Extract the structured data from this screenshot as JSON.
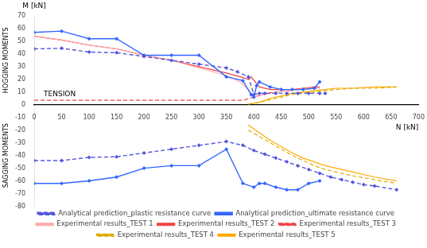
{
  "chart_data": {
    "type": "line",
    "xlabel": "N [kN]",
    "ylabel": "M [kN]",
    "annotations": [
      {
        "text": "TENSION"
      },
      {
        "text": "HOGGING MOMENTS"
      },
      {
        "text": "SAGGING MOMENTS"
      }
    ],
    "xlim": [
      0,
      700
    ],
    "ylim": [
      -80,
      70
    ],
    "xticks": [
      0,
      50,
      100,
      150,
      200,
      250,
      300,
      350,
      400,
      450,
      500,
      550,
      600,
      650,
      700
    ],
    "yticks": [
      -80,
      -70,
      -60,
      -50,
      -40,
      -30,
      -20,
      -10,
      0,
      10,
      20,
      30,
      40,
      50,
      60,
      70
    ],
    "grid": false,
    "legend": "bottom",
    "series": [
      {
        "name": "Analytical prediction_plastic resistance curve",
        "color": "#5555dd",
        "line_style": "dashed",
        "marker": "diamond",
        "x": [
          0,
          50,
          100,
          150,
          200,
          250,
          300,
          350,
          370,
          390,
          400,
          410,
          420,
          440,
          460,
          480,
          500,
          520,
          530,
          null,
          0,
          50,
          100,
          150,
          200,
          250,
          300,
          350,
          380,
          400,
          420,
          440,
          460,
          480,
          500,
          520,
          540,
          560,
          580,
          600,
          620,
          660
        ],
        "values": [
          44,
          44.5,
          41.5,
          41,
          38,
          35,
          32,
          29,
          26,
          22,
          8,
          9,
          9,
          9,
          9,
          9,
          9,
          9,
          9,
          null,
          -44,
          -44,
          -41.5,
          -41,
          -38,
          -35,
          -32,
          -29,
          -32,
          -36,
          -39,
          -42,
          -45,
          -48,
          -51,
          -54,
          -57,
          -59,
          -61,
          -63,
          -64,
          -67
        ]
      },
      {
        "name": "Analytical prediction_ultimate resistance curve",
        "color": "#3366ff",
        "line_style": "solid",
        "marker": "diamond",
        "x": [
          0,
          50,
          100,
          150,
          200,
          250,
          300,
          350,
          380,
          395,
          400,
          405,
          410,
          430,
          450,
          470,
          490,
          510,
          520,
          null,
          0,
          50,
          100,
          150,
          200,
          250,
          300,
          350,
          380,
          400,
          410,
          420,
          440,
          460,
          480,
          500,
          520
        ],
        "values": [
          57,
          58,
          52,
          52,
          39,
          39,
          39,
          22,
          19,
          8,
          6,
          15,
          18,
          14,
          12,
          12,
          12,
          13,
          18,
          null,
          -62,
          -62,
          -60,
          -57,
          -50,
          -48,
          -48,
          -35,
          -62,
          -65,
          -62,
          -62,
          -65,
          -67,
          -67,
          -62,
          -60
        ]
      },
      {
        "name": "Experimental results_TEST 1",
        "color": "#ffaaaa",
        "line_style": "solid",
        "marker": "none",
        "x": [
          0,
          50,
          100,
          150,
          200,
          250,
          300,
          350,
          375,
          390,
          400,
          410,
          420,
          440,
          460,
          480,
          500,
          520
        ],
        "values": [
          54,
          51,
          47,
          44,
          39,
          35,
          29,
          23,
          18,
          12,
          6,
          7,
          8,
          10,
          11,
          12,
          13,
          13
        ]
      },
      {
        "name": "Experimental results_TEST 2",
        "color": "#ee4444",
        "line_style": "solid",
        "marker": "none",
        "x": [
          0,
          50,
          100,
          150,
          200,
          250,
          300,
          350,
          375,
          390,
          395,
          410,
          430,
          450,
          470,
          490,
          510,
          520
        ],
        "values": [
          54,
          51,
          47,
          44,
          39,
          35,
          30,
          25,
          22,
          20,
          22,
          14,
          12,
          12,
          12,
          13,
          14,
          14
        ]
      },
      {
        "name": "Experimental results_TEST 3",
        "color": "#ee4444",
        "line_style": "dashed",
        "marker": "none",
        "x": [
          0,
          50,
          100,
          150,
          200,
          250,
          300,
          350,
          380,
          400,
          420,
          440,
          460,
          480,
          500,
          520
        ],
        "values": [
          3.5,
          3.5,
          3.5,
          3.5,
          3.5,
          3.5,
          3.5,
          3.5,
          3.5,
          6,
          9,
          10,
          11,
          12,
          13,
          13
        ]
      },
      {
        "name": "Experimental results_TEST 4",
        "color": "#ddaa00",
        "line_style": "dashed",
        "marker": "none",
        "x": [
          390,
          410,
          430,
          450,
          470,
          490,
          510,
          530,
          550,
          580,
          620,
          660,
          null,
          390,
          410,
          430,
          450,
          470,
          490,
          510,
          530,
          550,
          580,
          620,
          660
        ],
        "values": [
          0.5,
          2,
          4,
          6,
          8,
          9,
          10,
          11,
          12,
          13,
          13,
          14,
          null,
          -20,
          -25,
          -30,
          -35,
          -40,
          -44,
          -48,
          -51,
          -53,
          -56,
          -59,
          -62
        ]
      },
      {
        "name": "Experimental results_TEST 5",
        "color": "#ffaa00",
        "line_style": "solid",
        "marker": "none",
        "x": [
          390,
          410,
          430,
          450,
          470,
          490,
          510,
          530,
          550,
          580,
          620,
          660,
          null,
          390,
          410,
          430,
          450,
          470,
          490,
          510,
          530,
          550,
          580,
          620,
          660
        ],
        "values": [
          0.5,
          2,
          5,
          7,
          9,
          10,
          11,
          12,
          13,
          13,
          14,
          14,
          null,
          -16,
          -22,
          -28,
          -33,
          -38,
          -42,
          -45,
          -48,
          -50,
          -53,
          -57,
          -60
        ]
      }
    ]
  }
}
